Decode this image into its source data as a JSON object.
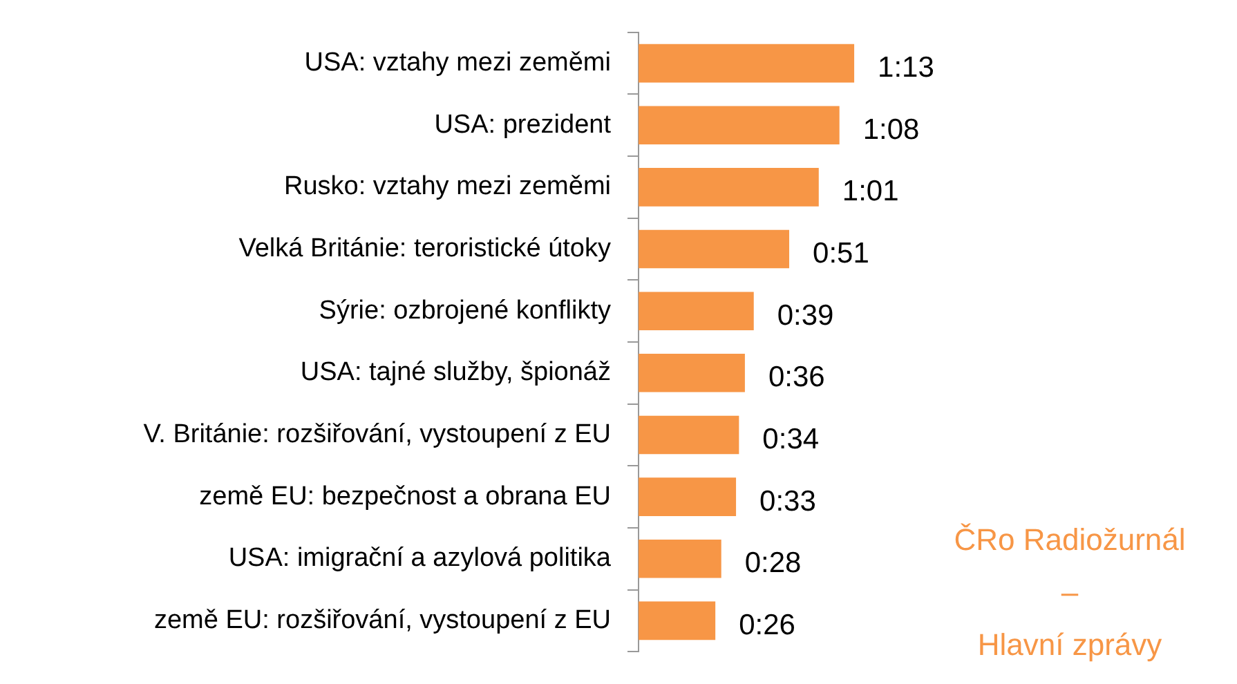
{
  "chart_data": {
    "type": "bar",
    "orientation": "horizontal",
    "categories": [
      "USA: vztahy mezi zeměmi",
      "USA: prezident",
      "Rusko: vztahy mezi zeměmi",
      "Velká Británie: teroristické útoky",
      "Sýrie: ozbrojené konflikty",
      "USA: tajné služby, špionáž",
      "V. Británie: rozšiřování, vystoupení z EU",
      "země EU: bezpečnost a obrana EU",
      "USA: imigrační a azylová politika",
      "země EU: rozšiřování, vystoupení z EU"
    ],
    "values": [
      73,
      68,
      61,
      51,
      39,
      36,
      34,
      33,
      28,
      26
    ],
    "value_labels": [
      "1:13",
      "1:08",
      "1:01",
      "0:51",
      "0:39",
      "0:36",
      "0:34",
      "0:33",
      "0:28",
      "0:26"
    ],
    "color": "#f79646",
    "tick_labels": "y",
    "grid": false,
    "legend": false,
    "annotations": [
      "ČRo Radiožurnál",
      "–",
      "Hlavní zprávy"
    ]
  }
}
